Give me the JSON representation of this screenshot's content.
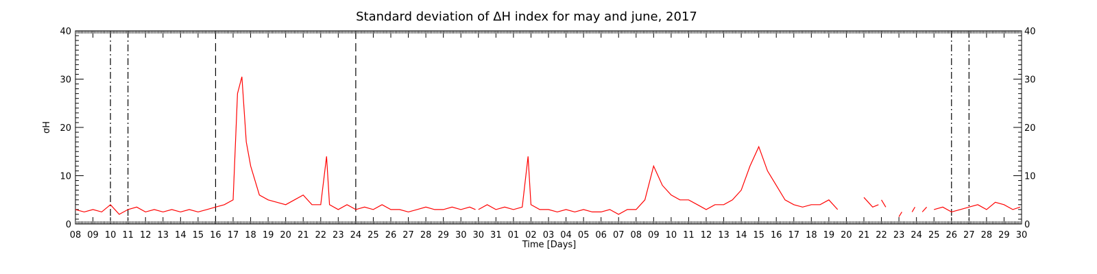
{
  "chart_data": {
    "type": "line",
    "title": "Standard deviation of ΔH index for may and june, 2017",
    "xlabel": "Time [Days]",
    "ylabel": "σH",
    "ylim": [
      0,
      40
    ],
    "y_ticks": [
      "0",
      "10",
      "20",
      "30",
      "40"
    ],
    "x_range_days": [
      "2017-05-08",
      "2017-06-30"
    ],
    "x_tick_labels": [
      "08",
      "09",
      "10",
      "11",
      "12",
      "13",
      "14",
      "15",
      "16",
      "17",
      "18",
      "19",
      "20",
      "21",
      "22",
      "23",
      "24",
      "25",
      "26",
      "27",
      "28",
      "29",
      "30",
      "30",
      "31",
      "01",
      "02",
      "03",
      "04",
      "05",
      "06",
      "07",
      "08",
      "09",
      "10",
      "11",
      "12",
      "13",
      "14",
      "15",
      "16",
      "17",
      "18",
      "19",
      "20",
      "21",
      "22",
      "23",
      "24",
      "25",
      "26",
      "27",
      "28",
      "29",
      "30"
    ],
    "grid": false,
    "series": [
      {
        "color": "#ff0000",
        "points": [
          [
            "2017-05-08",
            3.0
          ],
          [
            "2017-05-08T12",
            2.5
          ],
          [
            "2017-05-09",
            3.0
          ],
          [
            "2017-05-09T12",
            2.5
          ],
          [
            "2017-05-10",
            4.0
          ],
          [
            "2017-05-10T12",
            2.0
          ],
          [
            "2017-05-11",
            3.0
          ],
          [
            "2017-05-11T12",
            3.5
          ],
          [
            "2017-05-12",
            2.5
          ],
          [
            "2017-05-12T12",
            3.0
          ],
          [
            "2017-05-13",
            2.5
          ],
          [
            "2017-05-13T12",
            3.0
          ],
          [
            "2017-05-14",
            2.5
          ],
          [
            "2017-05-14T12",
            3.0
          ],
          [
            "2017-05-15",
            2.5
          ],
          [
            "2017-05-15T12",
            3.0
          ],
          [
            "2017-05-16",
            3.5
          ],
          [
            "2017-05-16T12",
            4.0
          ],
          [
            "2017-05-17",
            5.0
          ],
          [
            "2017-05-17T06",
            27.0
          ],
          [
            "2017-05-17T12",
            30.5
          ],
          [
            "2017-05-17T18",
            17.0
          ],
          [
            "2017-05-18",
            12.0
          ],
          [
            "2017-05-18T12",
            6.0
          ],
          [
            "2017-05-19",
            5.0
          ],
          [
            "2017-05-19T12",
            4.5
          ],
          [
            "2017-05-20",
            4.0
          ],
          [
            "2017-05-20T12",
            5.0
          ],
          [
            "2017-05-21",
            6.0
          ],
          [
            "2017-05-21T12",
            4.0
          ],
          [
            "2017-05-22",
            4.0
          ],
          [
            "2017-05-22T08",
            14.0
          ],
          [
            "2017-05-22T12",
            4.0
          ],
          [
            "2017-05-23",
            3.0
          ],
          [
            "2017-05-23T12",
            4.0
          ],
          [
            "2017-05-24",
            3.0
          ],
          [
            "2017-05-24T12",
            3.5
          ],
          [
            "2017-05-25",
            3.0
          ],
          [
            "2017-05-25T12",
            4.0
          ],
          [
            "2017-05-26",
            3.0
          ],
          [
            "2017-05-26T12",
            3.0
          ],
          [
            "2017-05-27",
            2.5
          ],
          [
            "2017-05-27T12",
            3.0
          ],
          [
            "2017-05-28",
            3.5
          ],
          [
            "2017-05-28T12",
            3.0
          ],
          [
            "2017-05-29",
            3.0
          ],
          [
            "2017-05-29T12",
            3.5
          ],
          [
            "2017-05-30",
            3.0
          ],
          [
            "2017-05-30T12",
            3.5
          ],
          [
            "2017-05-30T20",
            3.0
          ],
          null,
          [
            "2017-05-31",
            3.0
          ],
          [
            "2017-05-31T12",
            4.0
          ],
          [
            "2017-06-01",
            3.0
          ],
          [
            "2017-06-01T12",
            3.5
          ],
          [
            "2017-06-02",
            3.0
          ],
          [
            "2017-06-02T12",
            3.5
          ],
          [
            "2017-06-02T20",
            14.0
          ],
          [
            "2017-06-03",
            4.0
          ],
          [
            "2017-06-03T12",
            3.0
          ],
          [
            "2017-06-04",
            3.0
          ],
          [
            "2017-06-04T12",
            2.5
          ],
          [
            "2017-06-05",
            3.0
          ],
          [
            "2017-06-05T12",
            2.5
          ],
          [
            "2017-06-06",
            3.0
          ],
          [
            "2017-06-06T12",
            2.5
          ],
          [
            "2017-06-07",
            2.5
          ],
          [
            "2017-06-07T12",
            3.0
          ],
          [
            "2017-06-08",
            2.0
          ],
          [
            "2017-06-08T12",
            3.0
          ],
          [
            "2017-06-09",
            3.0
          ],
          [
            "2017-06-09T12",
            5.0
          ],
          [
            "2017-06-10",
            12.0
          ],
          [
            "2017-06-10T12",
            8.0
          ],
          [
            "2017-06-11",
            6.0
          ],
          [
            "2017-06-11T12",
            5.0
          ],
          [
            "2017-06-12",
            5.0
          ],
          [
            "2017-06-12T12",
            4.0
          ],
          [
            "2017-06-13",
            3.0
          ],
          [
            "2017-06-13T12",
            4.0
          ],
          [
            "2017-06-14",
            4.0
          ],
          [
            "2017-06-14T12",
            5.0
          ],
          [
            "2017-06-15",
            7.0
          ],
          [
            "2017-06-15T12",
            12.0
          ],
          [
            "2017-06-16",
            16.0
          ],
          [
            "2017-06-16T12",
            11.0
          ],
          [
            "2017-06-17",
            8.0
          ],
          [
            "2017-06-17T12",
            5.0
          ],
          [
            "2017-06-18",
            4.0
          ],
          [
            "2017-06-18T12",
            3.5
          ],
          [
            "2017-06-19",
            4.0
          ],
          [
            "2017-06-19T12",
            4.0
          ],
          [
            "2017-06-20",
            5.0
          ],
          [
            "2017-06-20T12",
            3.0
          ],
          null,
          [
            "2017-06-22",
            5.5
          ],
          [
            "2017-06-22T12",
            3.5
          ],
          [
            "2017-06-22T20",
            4.0
          ],
          null,
          [
            "2017-06-23",
            5.0
          ],
          [
            "2017-06-23T06",
            3.5
          ],
          null,
          [
            "2017-06-24",
            1.5
          ],
          [
            "2017-06-24T04",
            2.5
          ],
          null,
          [
            "2017-06-24T18",
            2.5
          ],
          [
            "2017-06-24T22",
            3.5
          ],
          null,
          [
            "2017-06-25T08",
            2.5
          ],
          [
            "2017-06-25T14",
            3.5
          ],
          null,
          [
            "2017-06-26",
            3.0
          ],
          [
            "2017-06-26T12",
            3.5
          ],
          [
            "2017-06-27",
            2.5
          ],
          [
            "2017-06-27T12",
            3.0
          ],
          [
            "2017-06-28",
            3.5
          ],
          [
            "2017-06-28T12",
            4.0
          ],
          [
            "2017-06-29",
            3.0
          ],
          [
            "2017-06-29T12",
            4.5
          ],
          [
            "2017-06-30",
            4.0
          ],
          [
            "2017-06-30T12",
            3.0
          ],
          [
            "2017-06-30T22",
            3.5
          ]
        ]
      }
    ],
    "markers": [
      {
        "day": "2017-05-10",
        "style": "dash-dot"
      },
      {
        "day": "2017-05-11",
        "style": "dash-dot"
      },
      {
        "day": "2017-05-16",
        "style": "dashed"
      },
      {
        "day": "2017-05-24",
        "style": "dashed"
      },
      {
        "day": "2017-06-27",
        "style": "dash-dot"
      },
      {
        "day": "2017-06-28",
        "style": "dash-dot"
      }
    ]
  }
}
